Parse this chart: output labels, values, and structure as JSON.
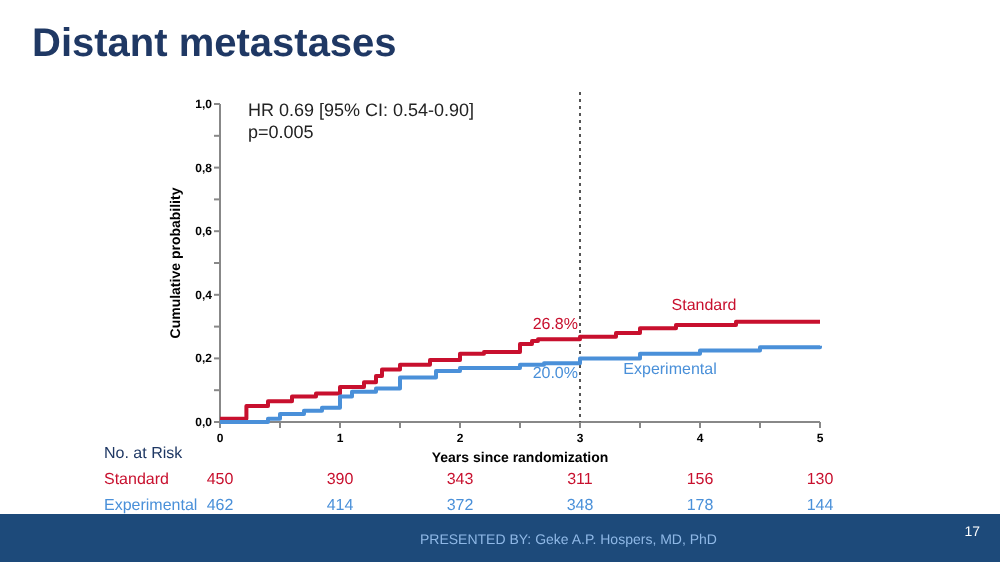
{
  "chart_data": {
    "type": "step",
    "title": "Distant metastases",
    "xlabel": "Years since randomization",
    "ylabel": "Cumulative probability",
    "xlim": [
      0,
      5
    ],
    "ylim": [
      0,
      1
    ],
    "xticks": [
      0,
      {
        "value": 0.5,
        "label": null
      },
      1,
      {
        "value": 1.5,
        "label": null
      },
      2,
      {
        "value": 2.5,
        "label": null
      },
      3,
      {
        "value": 3.5,
        "label": null
      },
      4,
      {
        "value": 4.5,
        "label": null
      },
      5
    ],
    "yticks": [
      {
        "value": 0,
        "label": "0,0"
      },
      {
        "value": 0.1,
        "label": null
      },
      {
        "value": 0.2,
        "label": "0,2"
      },
      {
        "value": 0.3,
        "label": null
      },
      {
        "value": 0.4,
        "label": "0,4"
      },
      {
        "value": 0.5,
        "label": null
      },
      {
        "value": 0.6,
        "label": "0,6"
      },
      {
        "value": 0.7,
        "label": null
      },
      {
        "value": 0.8,
        "label": "0,8"
      },
      {
        "value": 0.9,
        "label": null
      },
      {
        "value": 1,
        "label": "1,0"
      }
    ],
    "series": [
      {
        "name": "Standard",
        "color": "#c8102e",
        "x": [
          0,
          0.2,
          0.22,
          0.4,
          0.6,
          0.8,
          1.0,
          1.2,
          1.3,
          1.35,
          1.5,
          1.75,
          2.0,
          2.2,
          2.5,
          2.6,
          2.65,
          3.0,
          3.3,
          3.5,
          3.8,
          4.3,
          5.0
        ],
        "values": [
          0.01,
          0.01,
          0.05,
          0.065,
          0.08,
          0.09,
          0.11,
          0.125,
          0.145,
          0.165,
          0.18,
          0.195,
          0.215,
          0.22,
          0.245,
          0.255,
          0.26,
          0.268,
          0.28,
          0.295,
          0.305,
          0.315,
          0.315
        ]
      },
      {
        "name": "Experimental",
        "color": "#4a90d9",
        "x": [
          0,
          0.3,
          0.4,
          0.5,
          0.7,
          0.85,
          1.0,
          1.1,
          1.3,
          1.5,
          1.8,
          2.0,
          2.5,
          2.7,
          3.0,
          3.5,
          4.0,
          4.5,
          5.0
        ],
        "values": [
          0,
          0,
          0.01,
          0.025,
          0.035,
          0.045,
          0.08,
          0.095,
          0.105,
          0.14,
          0.16,
          0.17,
          0.18,
          0.185,
          0.2,
          0.215,
          0.225,
          0.235,
          0.24
        ]
      }
    ],
    "ref_lines": [
      {
        "axis": "x",
        "value": 3,
        "line_style": "dotted",
        "color": "#555555"
      }
    ],
    "annotations": [
      "HR 0.69 [95% CI: 0.54-0.90]\np=0.005",
      {
        "text": "26.8%",
        "x": 3,
        "y": 0.268
      },
      {
        "text": "20.0%",
        "x": 3,
        "y": 0.2
      },
      "No. at Risk",
      "450",
      "390",
      "343",
      "311",
      "156",
      "130",
      "462",
      "414",
      "372",
      "348",
      "178",
      "144",
      "PRESENTED BY: Geke A.P. Hospers, MD, PhD",
      "17"
    ],
    "grid": false,
    "marker": "none",
    "line_style": "solid"
  }
}
